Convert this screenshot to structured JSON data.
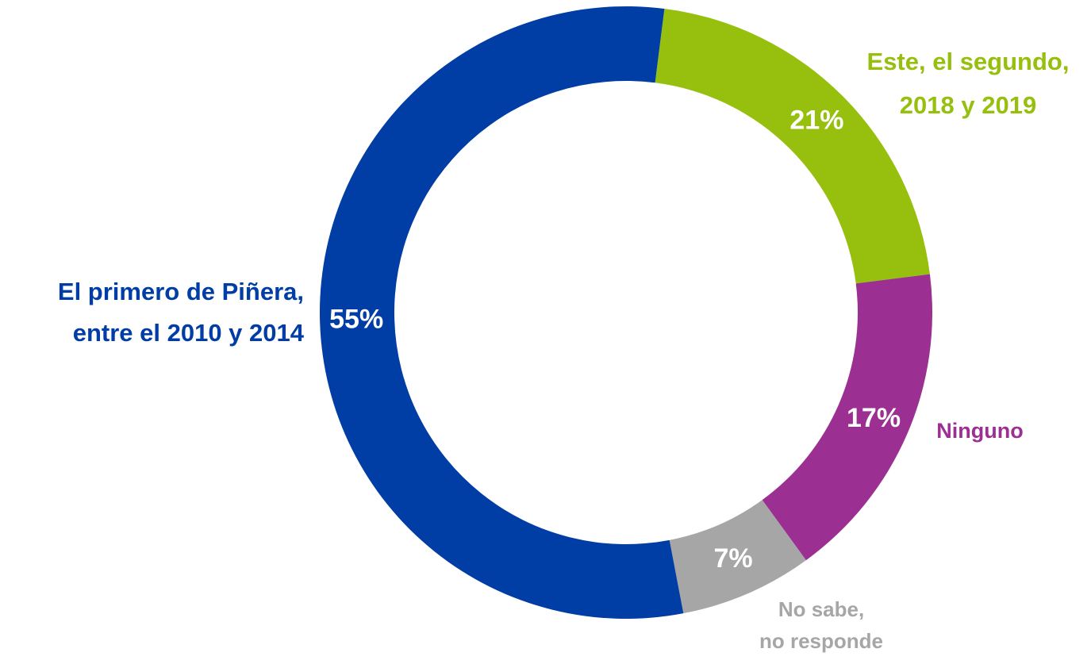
{
  "chart_data": {
    "type": "donut",
    "categories": [
      [
        "Este, el segundo,",
        "2018 y 2019"
      ],
      [
        "Ninguno"
      ],
      [
        "No sabe,",
        "no responde"
      ],
      [
        "El primero de Piñera,",
        "entre el 2010 y 2014"
      ]
    ],
    "values": [
      21,
      17,
      7,
      55
    ],
    "value_labels": [
      "21%",
      "17%",
      "7%",
      "55%"
    ],
    "colors": [
      "#97bf0d",
      "#9b2f92",
      "#a6a6a6",
      "#003da5"
    ]
  }
}
